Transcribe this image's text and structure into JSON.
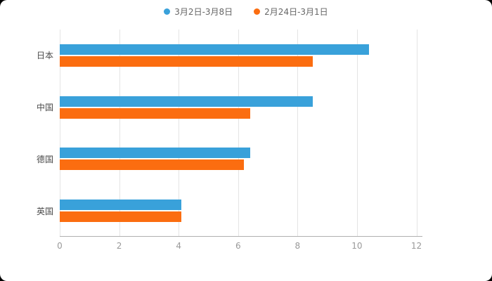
{
  "page": {
    "background": "#000000",
    "card_background": "#ffffff"
  },
  "chart_data": {
    "type": "bar",
    "orientation": "horizontal",
    "title": "",
    "categories": [
      "日本",
      "中国",
      "德国",
      "英国"
    ],
    "series": [
      {
        "name": "3月2日-3月8日",
        "color": "#39a1da",
        "values": [
          10.4,
          8.5,
          6.4,
          4.1
        ]
      },
      {
        "name": "2月24日-3月1日",
        "color": "#fb6d10",
        "values": [
          8.5,
          6.4,
          6.2,
          4.1
        ]
      }
    ],
    "xlim": [
      0,
      12.2
    ],
    "x_ticks": [
      0,
      2,
      4,
      6,
      8,
      10,
      12
    ],
    "legend_position": "top-center",
    "grid": true,
    "grid_color": "#e4e4e4",
    "axis_line_color": "#b0b0b0",
    "tick_label_color": "#999999",
    "category_label_color": "#4a4a4a"
  }
}
